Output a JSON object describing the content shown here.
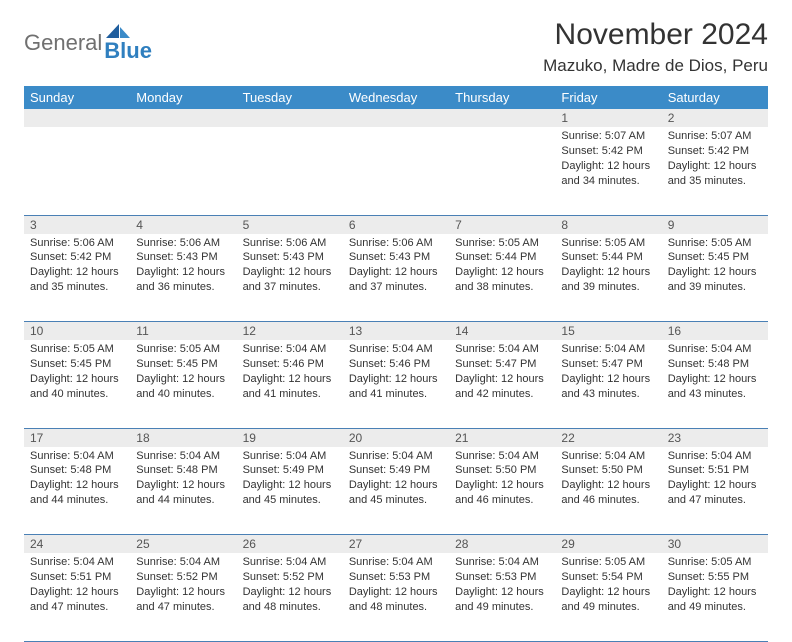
{
  "logo": {
    "part1": "General",
    "part2": "Blue"
  },
  "title": "November 2024",
  "location": "Mazuko, Madre de Dios, Peru",
  "header_bg": "#3b8bc8",
  "daynum_bg": "#ececec",
  "rule_color": "#4a80b5",
  "day_headers": [
    "Sunday",
    "Monday",
    "Tuesday",
    "Wednesday",
    "Thursday",
    "Friday",
    "Saturday"
  ],
  "weeks": [
    [
      {
        "num": "",
        "lines": []
      },
      {
        "num": "",
        "lines": []
      },
      {
        "num": "",
        "lines": []
      },
      {
        "num": "",
        "lines": []
      },
      {
        "num": "",
        "lines": []
      },
      {
        "num": "1",
        "lines": [
          "Sunrise: 5:07 AM",
          "Sunset: 5:42 PM",
          "Daylight: 12 hours and 34 minutes."
        ]
      },
      {
        "num": "2",
        "lines": [
          "Sunrise: 5:07 AM",
          "Sunset: 5:42 PM",
          "Daylight: 12 hours and 35 minutes."
        ]
      }
    ],
    [
      {
        "num": "3",
        "lines": [
          "Sunrise: 5:06 AM",
          "Sunset: 5:42 PM",
          "Daylight: 12 hours and 35 minutes."
        ]
      },
      {
        "num": "4",
        "lines": [
          "Sunrise: 5:06 AM",
          "Sunset: 5:43 PM",
          "Daylight: 12 hours and 36 minutes."
        ]
      },
      {
        "num": "5",
        "lines": [
          "Sunrise: 5:06 AM",
          "Sunset: 5:43 PM",
          "Daylight: 12 hours and 37 minutes."
        ]
      },
      {
        "num": "6",
        "lines": [
          "Sunrise: 5:06 AM",
          "Sunset: 5:43 PM",
          "Daylight: 12 hours and 37 minutes."
        ]
      },
      {
        "num": "7",
        "lines": [
          "Sunrise: 5:05 AM",
          "Sunset: 5:44 PM",
          "Daylight: 12 hours and 38 minutes."
        ]
      },
      {
        "num": "8",
        "lines": [
          "Sunrise: 5:05 AM",
          "Sunset: 5:44 PM",
          "Daylight: 12 hours and 39 minutes."
        ]
      },
      {
        "num": "9",
        "lines": [
          "Sunrise: 5:05 AM",
          "Sunset: 5:45 PM",
          "Daylight: 12 hours and 39 minutes."
        ]
      }
    ],
    [
      {
        "num": "10",
        "lines": [
          "Sunrise: 5:05 AM",
          "Sunset: 5:45 PM",
          "Daylight: 12 hours and 40 minutes."
        ]
      },
      {
        "num": "11",
        "lines": [
          "Sunrise: 5:05 AM",
          "Sunset: 5:45 PM",
          "Daylight: 12 hours and 40 minutes."
        ]
      },
      {
        "num": "12",
        "lines": [
          "Sunrise: 5:04 AM",
          "Sunset: 5:46 PM",
          "Daylight: 12 hours and 41 minutes."
        ]
      },
      {
        "num": "13",
        "lines": [
          "Sunrise: 5:04 AM",
          "Sunset: 5:46 PM",
          "Daylight: 12 hours and 41 minutes."
        ]
      },
      {
        "num": "14",
        "lines": [
          "Sunrise: 5:04 AM",
          "Sunset: 5:47 PM",
          "Daylight: 12 hours and 42 minutes."
        ]
      },
      {
        "num": "15",
        "lines": [
          "Sunrise: 5:04 AM",
          "Sunset: 5:47 PM",
          "Daylight: 12 hours and 43 minutes."
        ]
      },
      {
        "num": "16",
        "lines": [
          "Sunrise: 5:04 AM",
          "Sunset: 5:48 PM",
          "Daylight: 12 hours and 43 minutes."
        ]
      }
    ],
    [
      {
        "num": "17",
        "lines": [
          "Sunrise: 5:04 AM",
          "Sunset: 5:48 PM",
          "Daylight: 12 hours and 44 minutes."
        ]
      },
      {
        "num": "18",
        "lines": [
          "Sunrise: 5:04 AM",
          "Sunset: 5:48 PM",
          "Daylight: 12 hours and 44 minutes."
        ]
      },
      {
        "num": "19",
        "lines": [
          "Sunrise: 5:04 AM",
          "Sunset: 5:49 PM",
          "Daylight: 12 hours and 45 minutes."
        ]
      },
      {
        "num": "20",
        "lines": [
          "Sunrise: 5:04 AM",
          "Sunset: 5:49 PM",
          "Daylight: 12 hours and 45 minutes."
        ]
      },
      {
        "num": "21",
        "lines": [
          "Sunrise: 5:04 AM",
          "Sunset: 5:50 PM",
          "Daylight: 12 hours and 46 minutes."
        ]
      },
      {
        "num": "22",
        "lines": [
          "Sunrise: 5:04 AM",
          "Sunset: 5:50 PM",
          "Daylight: 12 hours and 46 minutes."
        ]
      },
      {
        "num": "23",
        "lines": [
          "Sunrise: 5:04 AM",
          "Sunset: 5:51 PM",
          "Daylight: 12 hours and 47 minutes."
        ]
      }
    ],
    [
      {
        "num": "24",
        "lines": [
          "Sunrise: 5:04 AM",
          "Sunset: 5:51 PM",
          "Daylight: 12 hours and 47 minutes."
        ]
      },
      {
        "num": "25",
        "lines": [
          "Sunrise: 5:04 AM",
          "Sunset: 5:52 PM",
          "Daylight: 12 hours and 47 minutes."
        ]
      },
      {
        "num": "26",
        "lines": [
          "Sunrise: 5:04 AM",
          "Sunset: 5:52 PM",
          "Daylight: 12 hours and 48 minutes."
        ]
      },
      {
        "num": "27",
        "lines": [
          "Sunrise: 5:04 AM",
          "Sunset: 5:53 PM",
          "Daylight: 12 hours and 48 minutes."
        ]
      },
      {
        "num": "28",
        "lines": [
          "Sunrise: 5:04 AM",
          "Sunset: 5:53 PM",
          "Daylight: 12 hours and 49 minutes."
        ]
      },
      {
        "num": "29",
        "lines": [
          "Sunrise: 5:05 AM",
          "Sunset: 5:54 PM",
          "Daylight: 12 hours and 49 minutes."
        ]
      },
      {
        "num": "30",
        "lines": [
          "Sunrise: 5:05 AM",
          "Sunset: 5:55 PM",
          "Daylight: 12 hours and 49 minutes."
        ]
      }
    ]
  ]
}
